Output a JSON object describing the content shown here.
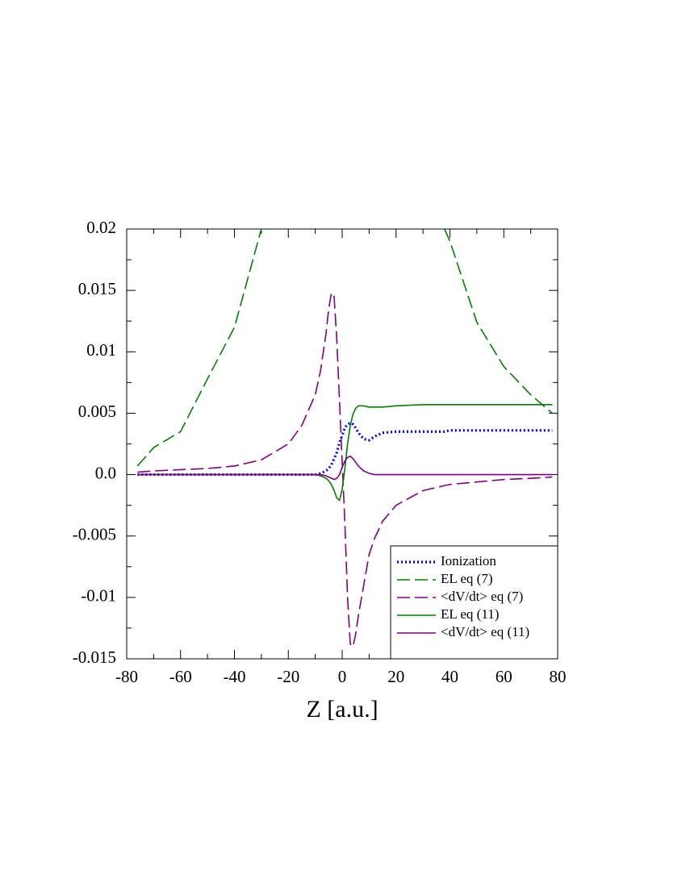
{
  "chart_data": {
    "type": "line",
    "x_label": "Z [a.u.]",
    "x": [
      -76,
      -70,
      -60,
      -50,
      -40,
      -30,
      -20,
      -15,
      -10,
      -8,
      -6,
      -5,
      -4,
      -3,
      -2,
      -1,
      0,
      1,
      2,
      3,
      4,
      5,
      6,
      8,
      10,
      12,
      15,
      20,
      30,
      38,
      40,
      50,
      60,
      70,
      78
    ],
    "xlim": [
      -80,
      80
    ],
    "xticks": [
      -80,
      -60,
      -40,
      -20,
      0,
      20,
      40,
      60,
      80
    ],
    "ylim": [
      -0.015,
      0.02
    ],
    "yticks": [
      -0.015,
      -0.01,
      -0.005,
      {
        "value": 0,
        "label": "0.0"
      },
      0.005,
      0.01,
      0.015,
      0.02
    ],
    "legend": "lower right",
    "series": [
      {
        "name": "Ionization",
        "color": "#0000ff",
        "linestyle": "dotted",
        "values": [
          0,
          0,
          0,
          0,
          0,
          0,
          0,
          0,
          0,
          0.0001,
          0.0003,
          0.0005,
          0.0008,
          0.0013,
          0.0018,
          0.0026,
          0.0032,
          0.0038,
          0.0041,
          0.0042,
          0.0041,
          0.0038,
          0.0034,
          0.0029,
          0.0028,
          0.0031,
          0.0034,
          0.0035,
          0.0035,
          0.0035,
          0.0036,
          0.0036,
          0.0036,
          0.0036,
          0.0036
        ]
      },
      {
        "name": "EL eq (7)",
        "color": "#008000",
        "linestyle": "dashed",
        "values": [
          0.0007,
          0.0022,
          0.0035,
          0.0078,
          0.012,
          0.02,
          null,
          null,
          null,
          null,
          null,
          null,
          null,
          null,
          null,
          null,
          null,
          null,
          null,
          null,
          null,
          null,
          null,
          null,
          null,
          null,
          null,
          null,
          null,
          0.02,
          0.019,
          0.0124,
          0.0088,
          0.0065,
          0.005
        ]
      },
      {
        "name": "<dV/dt> eq (7)",
        "color": "#800080",
        "linestyle": "dashed",
        "values": [
          0.0002,
          0.0003,
          0.0004,
          0.0005,
          0.0007,
          0.0012,
          0.0025,
          0.004,
          0.0065,
          0.0085,
          0.0115,
          0.0135,
          0.0148,
          0.0145,
          0.011,
          0.006,
          0.001,
          -0.004,
          -0.01,
          -0.0138,
          -0.014,
          -0.013,
          -0.0115,
          -0.009,
          -0.0065,
          -0.0052,
          -0.0038,
          -0.0025,
          -0.0013,
          -0.0009,
          -0.0008,
          -0.0006,
          -0.0004,
          -0.0003,
          -0.0002
        ]
      },
      {
        "name": "EL eq (11)",
        "color": "#008000",
        "linestyle": "solid",
        "values": [
          0,
          0,
          0,
          0,
          0,
          0,
          0,
          0,
          0,
          -0.0001,
          -0.0003,
          -0.0005,
          -0.0008,
          -0.0013,
          -0.0019,
          -0.0021,
          -0.0012,
          0.0005,
          0.0025,
          0.004,
          0.0049,
          0.0054,
          0.0056,
          0.0056,
          0.0055,
          0.0055,
          0.0055,
          0.0056,
          0.0057,
          0.0057,
          0.0057,
          0.0057,
          0.0057,
          0.0057,
          0.0057
        ]
      },
      {
        "name": "<dV/dt> eq (11)",
        "color": "#800080",
        "linestyle": "solid",
        "values": [
          0,
          0,
          0,
          0,
          0,
          0,
          0,
          0,
          0,
          0,
          -0.0001,
          -0.0002,
          -0.0003,
          -0.0004,
          -0.0003,
          0,
          0.0006,
          0.0011,
          0.0014,
          0.0015,
          0.0013,
          0.001,
          0.0007,
          0.0003,
          0.0001,
          0,
          0,
          0,
          0,
          0,
          0,
          0,
          0,
          0,
          0
        ]
      }
    ]
  }
}
